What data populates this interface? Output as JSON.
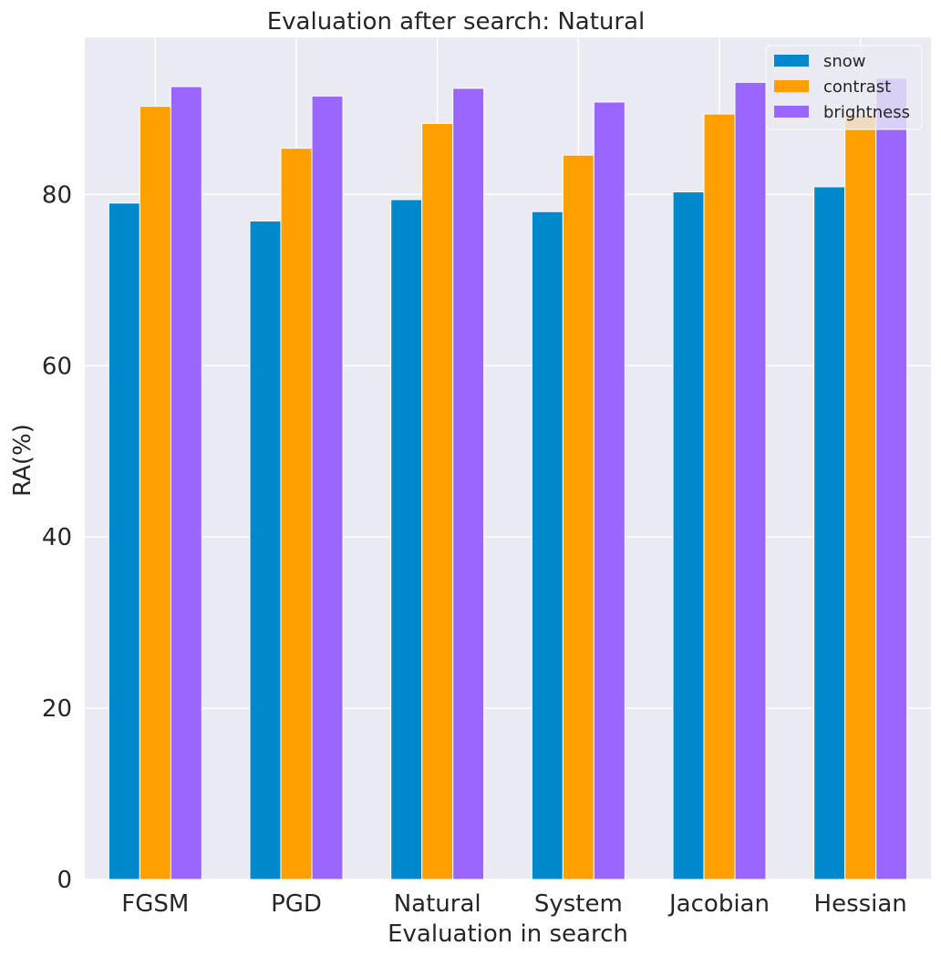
{
  "chart_data": {
    "type": "bar",
    "title": "Evaluation after search: Natural",
    "xlabel": "Evaluation in search",
    "ylabel": "RA(%)",
    "categories": [
      "FGSM",
      "PGD",
      "Natural",
      "System",
      "Jacobian",
      "Hessian"
    ],
    "ylim": [
      0,
      100
    ],
    "yticks": [
      0,
      20,
      40,
      60,
      80
    ],
    "grid": true,
    "legend_position": "top-right",
    "series": [
      {
        "name": "snow",
        "color": "#0088cc",
        "values": [
          79.0,
          76.9,
          79.4,
          78.0,
          80.3,
          80.9
        ]
      },
      {
        "name": "contrast",
        "color": "#ffa000",
        "values": [
          90.3,
          85.4,
          88.3,
          84.6,
          89.4,
          89.3
        ]
      },
      {
        "name": "brightness",
        "color": "#9966ff",
        "values": [
          92.6,
          91.5,
          92.4,
          90.8,
          93.1,
          93.6
        ]
      }
    ]
  }
}
